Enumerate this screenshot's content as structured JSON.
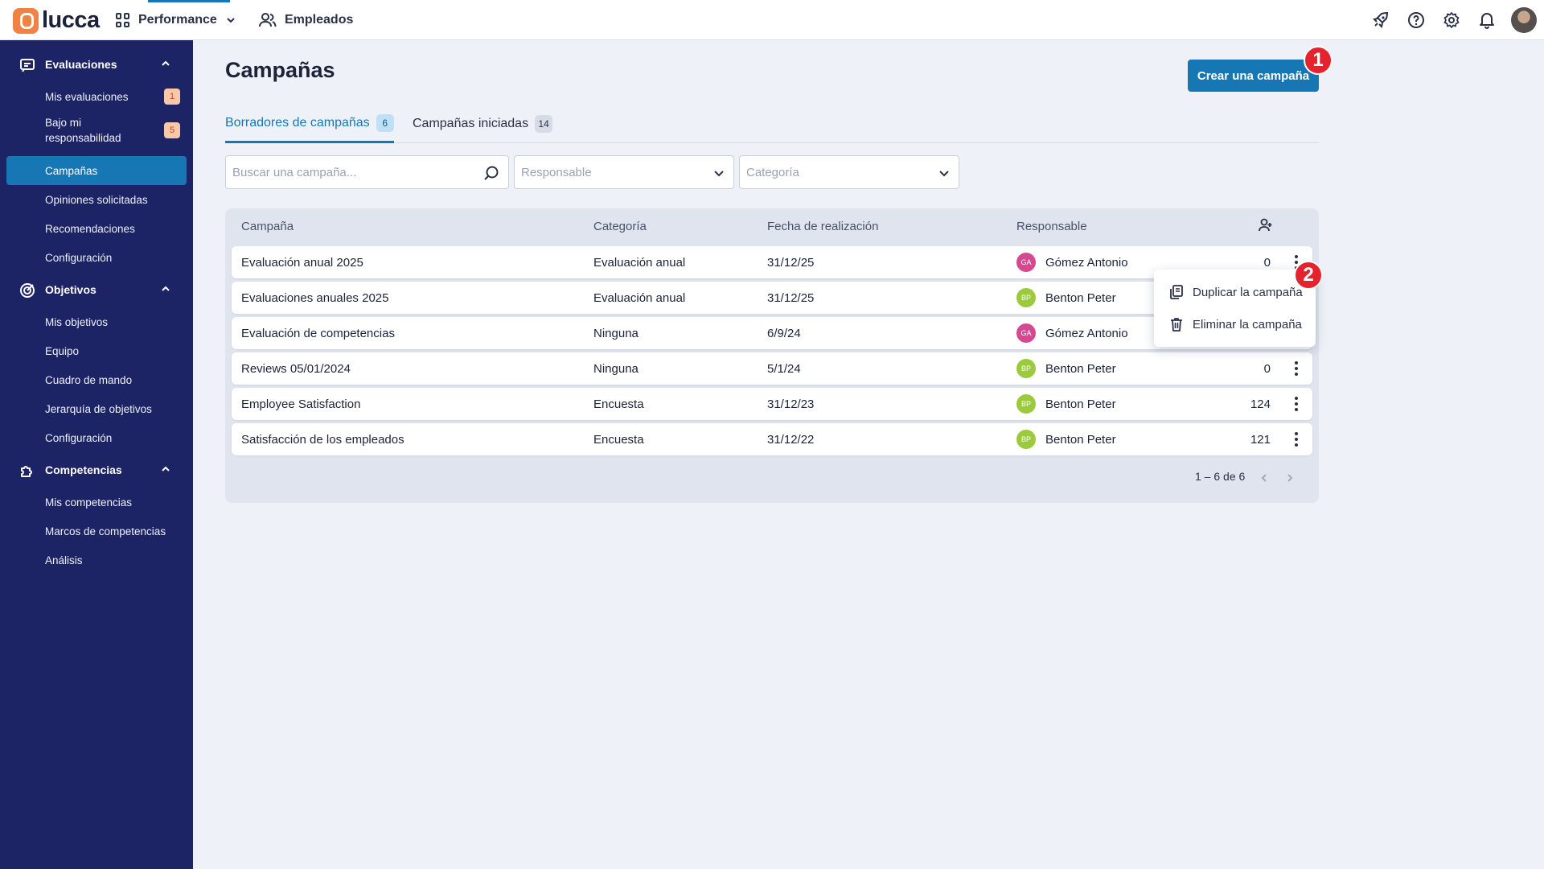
{
  "topbar": {
    "logo": "lucca",
    "nav": [
      {
        "label": "Performance"
      },
      {
        "label": "Empleados"
      }
    ]
  },
  "sidebar": {
    "sections": [
      {
        "title": "Evaluaciones",
        "items": [
          {
            "label": "Mis evaluaciones",
            "badge": "1"
          },
          {
            "label": "Bajo mi responsabilidad",
            "badge": "5"
          },
          {
            "label": "Campañas",
            "active": true
          },
          {
            "label": "Opiniones solicitadas"
          },
          {
            "label": "Recomendaciones"
          },
          {
            "label": "Configuración"
          }
        ]
      },
      {
        "title": "Objetivos",
        "items": [
          {
            "label": "Mis objetivos"
          },
          {
            "label": "Equipo"
          },
          {
            "label": "Cuadro de mando"
          },
          {
            "label": "Jerarquía de objetivos"
          },
          {
            "label": "Configuración"
          }
        ]
      },
      {
        "title": "Competencias",
        "items": [
          {
            "label": "Mis competencias"
          },
          {
            "label": "Marcos de competencias"
          },
          {
            "label": "Análisis"
          }
        ]
      }
    ]
  },
  "main": {
    "title": "Campañas",
    "create_button": "Crear una campaña",
    "markers": [
      "1",
      "2"
    ],
    "tabs": [
      {
        "label": "Borradores de campañas",
        "count": "6"
      },
      {
        "label": "Campañas iniciadas",
        "count": "14"
      }
    ],
    "filters": {
      "search_placeholder": "Buscar una campaña...",
      "responsible_placeholder": "Responsable",
      "category_placeholder": "Categoría"
    },
    "table": {
      "headers": [
        "Campaña",
        "Categoría",
        "Fecha de realización",
        "Responsable"
      ],
      "rows": [
        {
          "name": "Evaluación anual 2025",
          "category": "Evaluación anual",
          "date": "31/12/25",
          "owner_initials": "GA",
          "owner": "Gómez Antonio",
          "count": "0"
        },
        {
          "name": "Evaluaciones anuales 2025",
          "category": "Evaluación anual",
          "date": "31/12/25",
          "owner_initials": "BP",
          "owner": "Benton Peter",
          "count": ""
        },
        {
          "name": "Evaluación de competencias",
          "category": "Ninguna",
          "date": "6/9/24",
          "owner_initials": "GA",
          "owner": "Gómez Antonio",
          "count": ""
        },
        {
          "name": "Reviews 05/01/2024",
          "category": "Ninguna",
          "date": "5/1/24",
          "owner_initials": "BP",
          "owner": "Benton Peter",
          "count": "0"
        },
        {
          "name": "Employee Satisfaction",
          "category": "Encuesta",
          "date": "31/12/23",
          "owner_initials": "BP",
          "owner": "Benton Peter",
          "count": "124"
        },
        {
          "name": "Satisfacción de los empleados",
          "category": "Encuesta",
          "date": "31/12/22",
          "owner_initials": "BP",
          "owner": "Benton Peter",
          "count": "121"
        }
      ],
      "pagination": "1 – 6 de 6"
    },
    "row_menu": {
      "duplicate": "Duplicar la campaña",
      "delete": "Eliminar la campaña"
    }
  },
  "colors": {
    "accent": "#1677b4",
    "sidebar": "#1c2465",
    "marker": "#e5232c",
    "avatar_ga": "#d6488f",
    "avatar_bp": "#9bcb3d"
  }
}
